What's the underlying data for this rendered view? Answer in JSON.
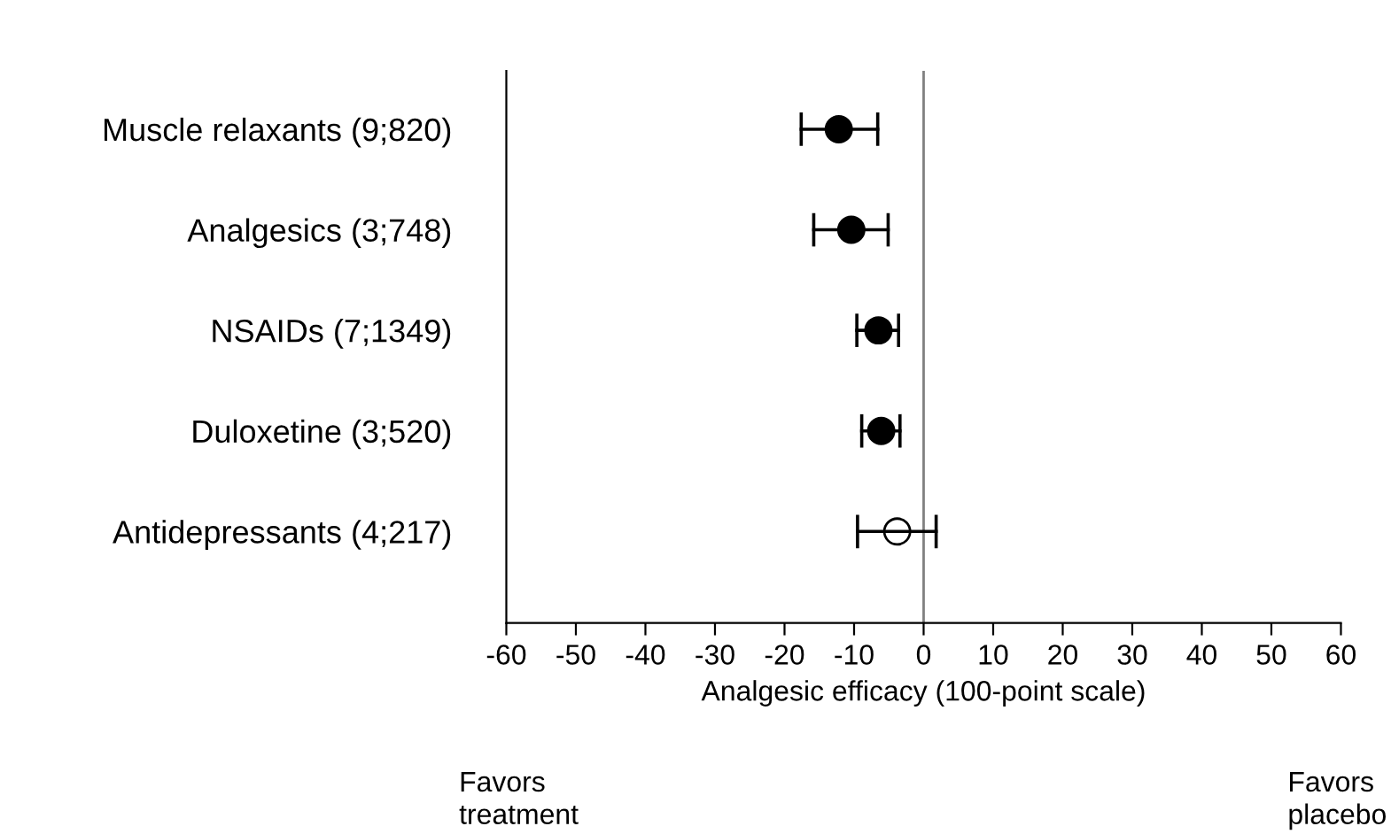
{
  "chart_data": {
    "type": "scatter",
    "orientation": "horizontal",
    "xlabel": "Analgesic efficacy (100-point scale)",
    "categories": [
      "Muscle relaxants (9;820)",
      "Analgesics (3;748)",
      "NSAIDs (7;1349)",
      "Duloxetine (3;520)",
      "Antidepressants (4;217)"
    ],
    "values": [
      -12.2,
      -10.4,
      -6.5,
      -6.1,
      -3.8
    ],
    "errors": [
      [
        -17.6,
        -6.6
      ],
      [
        -15.8,
        -5.1
      ],
      [
        -9.6,
        -3.6
      ],
      [
        -8.9,
        -3.4
      ],
      [
        -9.5,
        1.8
      ]
    ],
    "colors": [
      "#000000",
      "#000000",
      "#000000",
      "#000000",
      "#ffffff"
    ],
    "marker": "circle",
    "xlim": [
      -60,
      60
    ],
    "xticks": [
      -60,
      -50,
      -40,
      -30,
      -20,
      -10,
      0,
      10,
      20,
      30,
      40,
      50,
      60
    ],
    "ref_lines": [
      {
        "axis": "x",
        "value": 0,
        "color": "#808080"
      }
    ],
    "annotations": [
      "Favors\ntreatment",
      "Favors\nplacebo"
    ],
    "grid": false,
    "legend": false
  }
}
